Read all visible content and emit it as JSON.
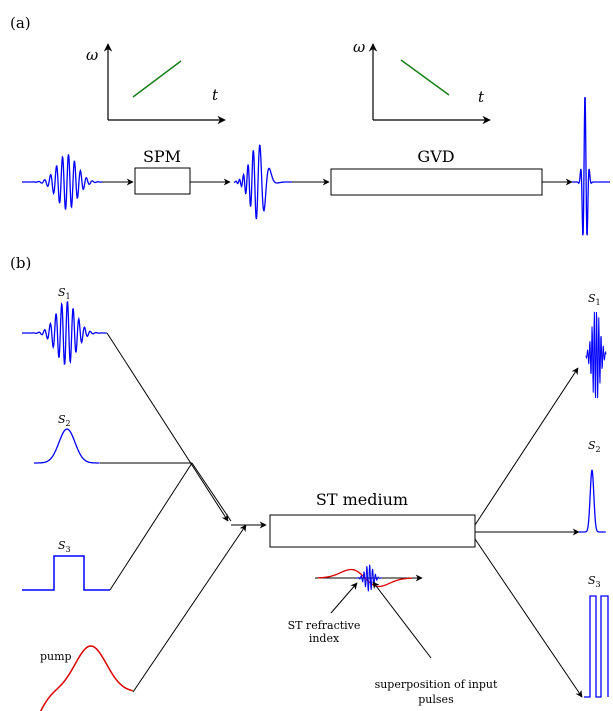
{
  "panel_a": {
    "label": "(a)",
    "axis1": {
      "y_label": "ω",
      "x_label": "t"
    },
    "axis2": {
      "y_label": "ω",
      "x_label": "t"
    },
    "box1": "SPM",
    "box2": "GVD"
  },
  "panel_b": {
    "label": "(b)",
    "inputs": {
      "s1": "S",
      "s1_sub": "1",
      "s2": "S",
      "s2_sub": "2",
      "s3": "S",
      "s3_sub": "3",
      "pump": "pump"
    },
    "medium": "ST medium",
    "outputs": {
      "s1": "S",
      "s1_sub": "1",
      "s2": "S",
      "s2_sub": "2",
      "s3": "S",
      "s3_sub": "3"
    },
    "annotation1_line1": "ST refractive",
    "annotation1_line2": "index",
    "annotation2_line1": "superposition of input",
    "annotation2_line2": "pulses"
  },
  "colors": {
    "pulse": "#0000ff",
    "pump": "#dd0000",
    "chirp": "#1a7f1a",
    "line": "#000000"
  }
}
